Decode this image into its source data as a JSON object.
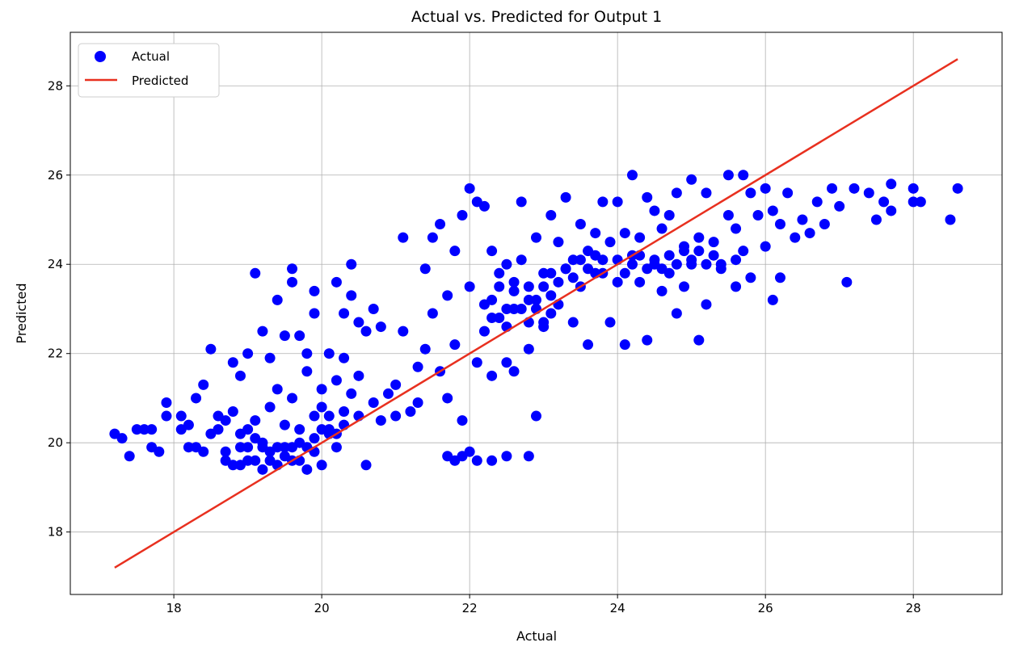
{
  "chart_data": {
    "type": "scatter",
    "title": "Actual vs. Predicted for Output 1",
    "xlabel": "Actual",
    "ylabel": "Predicted",
    "xlim": [
      16.6,
      29.2
    ],
    "ylim": [
      16.6,
      29.2
    ],
    "xticks": [
      18,
      20,
      22,
      24,
      26,
      28
    ],
    "yticks": [
      18,
      20,
      22,
      24,
      26,
      28
    ],
    "grid": true,
    "legend_position": "top-left",
    "series": [
      {
        "name": "Actual",
        "kind": "scatter",
        "color": "#0000ff",
        "points": [
          [
            17.2,
            20.2
          ],
          [
            17.3,
            20.1
          ],
          [
            17.4,
            19.7
          ],
          [
            17.5,
            20.3
          ],
          [
            17.6,
            20.3
          ],
          [
            17.7,
            20.3
          ],
          [
            17.7,
            19.9
          ],
          [
            17.8,
            19.8
          ],
          [
            17.9,
            20.9
          ],
          [
            17.9,
            20.6
          ],
          [
            18.1,
            20.6
          ],
          [
            18.1,
            20.3
          ],
          [
            18.2,
            20.4
          ],
          [
            18.2,
            19.9
          ],
          [
            18.3,
            21.0
          ],
          [
            18.3,
            19.9
          ],
          [
            18.4,
            21.3
          ],
          [
            18.4,
            19.8
          ],
          [
            18.5,
            22.1
          ],
          [
            18.5,
            20.2
          ],
          [
            18.6,
            20.6
          ],
          [
            18.6,
            20.3
          ],
          [
            18.7,
            20.5
          ],
          [
            18.7,
            19.6
          ],
          [
            18.8,
            20.7
          ],
          [
            18.8,
            21.8
          ],
          [
            18.9,
            21.5
          ],
          [
            18.9,
            19.5
          ],
          [
            19.0,
            20.3
          ],
          [
            19.0,
            22.0
          ],
          [
            19.1,
            23.8
          ],
          [
            19.1,
            20.5
          ],
          [
            19.2,
            22.5
          ],
          [
            19.2,
            20.0
          ],
          [
            19.3,
            20.8
          ],
          [
            19.3,
            21.9
          ],
          [
            19.4,
            23.2
          ],
          [
            19.4,
            21.2
          ],
          [
            19.5,
            22.4
          ],
          [
            19.5,
            20.4
          ],
          [
            19.6,
            23.9
          ],
          [
            19.6,
            23.6
          ],
          [
            19.6,
            21.0
          ],
          [
            19.7,
            22.4
          ],
          [
            19.7,
            20.3
          ],
          [
            19.8,
            22.0
          ],
          [
            19.8,
            21.6
          ],
          [
            19.9,
            23.4
          ],
          [
            19.9,
            22.9
          ],
          [
            19.9,
            20.6
          ],
          [
            20.0,
            21.2
          ],
          [
            20.0,
            20.8
          ],
          [
            20.1,
            22.0
          ],
          [
            20.1,
            20.3
          ],
          [
            20.2,
            23.6
          ],
          [
            20.2,
            21.4
          ],
          [
            20.3,
            22.9
          ],
          [
            20.3,
            21.9
          ],
          [
            20.4,
            23.3
          ],
          [
            20.4,
            24.0
          ],
          [
            20.4,
            21.1
          ],
          [
            20.5,
            22.7
          ],
          [
            20.5,
            21.5
          ],
          [
            20.5,
            20.6
          ],
          [
            20.6,
            22.5
          ],
          [
            20.6,
            19.5
          ],
          [
            20.7,
            23.0
          ],
          [
            20.7,
            20.9
          ],
          [
            20.8,
            22.6
          ],
          [
            20.8,
            20.5
          ],
          [
            20.9,
            21.1
          ],
          [
            21.0,
            21.3
          ],
          [
            21.0,
            20.6
          ],
          [
            21.1,
            24.6
          ],
          [
            21.1,
            22.5
          ],
          [
            21.2,
            20.7
          ],
          [
            21.3,
            21.7
          ],
          [
            21.3,
            20.9
          ],
          [
            21.4,
            23.9
          ],
          [
            21.4,
            22.1
          ],
          [
            21.5,
            24.6
          ],
          [
            21.5,
            22.9
          ],
          [
            21.6,
            24.9
          ],
          [
            21.6,
            21.6
          ],
          [
            21.7,
            23.3
          ],
          [
            21.7,
            21.0
          ],
          [
            21.8,
            24.3
          ],
          [
            21.8,
            22.2
          ],
          [
            21.9,
            25.1
          ],
          [
            21.9,
            20.5
          ],
          [
            22.0,
            25.7
          ],
          [
            22.0,
            23.5
          ],
          [
            22.1,
            25.4
          ],
          [
            22.1,
            21.8
          ],
          [
            22.2,
            25.3
          ],
          [
            22.2,
            23.1
          ],
          [
            22.3,
            24.3
          ],
          [
            22.3,
            21.5
          ],
          [
            22.4,
            23.8
          ],
          [
            22.4,
            22.8
          ],
          [
            22.5,
            24.0
          ],
          [
            22.5,
            21.8
          ],
          [
            22.6,
            23.6
          ],
          [
            22.6,
            21.6
          ],
          [
            22.7,
            25.4
          ],
          [
            22.7,
            24.1
          ],
          [
            22.8,
            23.2
          ],
          [
            22.8,
            22.1
          ],
          [
            22.9,
            24.6
          ],
          [
            22.9,
            20.6
          ],
          [
            23.0,
            23.8
          ],
          [
            23.0,
            22.7
          ],
          [
            23.1,
            25.1
          ],
          [
            23.1,
            23.3
          ],
          [
            23.2,
            24.5
          ],
          [
            23.2,
            23.1
          ],
          [
            23.3,
            25.5
          ],
          [
            23.3,
            23.9
          ],
          [
            23.4,
            24.1
          ],
          [
            23.4,
            22.7
          ],
          [
            23.5,
            24.9
          ],
          [
            23.5,
            23.5
          ],
          [
            23.6,
            24.3
          ],
          [
            23.6,
            22.2
          ],
          [
            23.7,
            24.7
          ],
          [
            23.7,
            23.8
          ],
          [
            23.8,
            25.4
          ],
          [
            23.8,
            24.1
          ],
          [
            23.9,
            24.5
          ],
          [
            23.9,
            22.7
          ],
          [
            24.0,
            25.4
          ],
          [
            24.0,
            23.6
          ],
          [
            24.1,
            24.7
          ],
          [
            24.1,
            22.2
          ],
          [
            24.2,
            26.0
          ],
          [
            24.2,
            24.2
          ],
          [
            24.3,
            24.6
          ],
          [
            24.3,
            23.6
          ],
          [
            24.4,
            25.5
          ],
          [
            24.4,
            22.3
          ],
          [
            24.5,
            25.2
          ],
          [
            24.5,
            24.0
          ],
          [
            24.6,
            24.8
          ],
          [
            24.6,
            23.4
          ],
          [
            24.7,
            25.1
          ],
          [
            24.7,
            23.8
          ],
          [
            24.8,
            25.6
          ],
          [
            24.8,
            22.9
          ],
          [
            24.9,
            24.4
          ],
          [
            24.9,
            23.5
          ],
          [
            25.0,
            25.9
          ],
          [
            25.0,
            24.0
          ],
          [
            25.1,
            24.6
          ],
          [
            25.1,
            22.3
          ],
          [
            25.2,
            25.6
          ],
          [
            25.2,
            23.1
          ],
          [
            25.3,
            24.5
          ],
          [
            25.4,
            24.0
          ],
          [
            25.5,
            26.0
          ],
          [
            25.5,
            25.1
          ],
          [
            25.6,
            24.8
          ],
          [
            25.6,
            23.5
          ],
          [
            25.7,
            26.0
          ],
          [
            25.7,
            24.3
          ],
          [
            25.8,
            25.6
          ],
          [
            25.8,
            23.7
          ],
          [
            25.9,
            25.1
          ],
          [
            26.0,
            25.7
          ],
          [
            26.0,
            24.4
          ],
          [
            26.1,
            25.2
          ],
          [
            26.1,
            23.2
          ],
          [
            26.2,
            24.9
          ],
          [
            26.2,
            23.7
          ],
          [
            26.3,
            25.6
          ],
          [
            26.4,
            24.6
          ],
          [
            26.5,
            25.0
          ],
          [
            26.6,
            24.7
          ],
          [
            26.7,
            25.4
          ],
          [
            26.8,
            24.9
          ],
          [
            26.9,
            25.7
          ],
          [
            27.0,
            25.3
          ],
          [
            27.1,
            23.6
          ],
          [
            27.2,
            25.7
          ],
          [
            27.4,
            25.6
          ],
          [
            27.5,
            25.0
          ],
          [
            27.6,
            25.4
          ],
          [
            27.7,
            25.2
          ],
          [
            27.7,
            25.8
          ],
          [
            28.0,
            25.7
          ],
          [
            28.0,
            25.4
          ],
          [
            28.1,
            25.4
          ],
          [
            28.5,
            25.0
          ],
          [
            28.6,
            25.7
          ],
          [
            18.8,
            19.5
          ],
          [
            18.9,
            19.9
          ],
          [
            19.0,
            19.6
          ],
          [
            19.1,
            20.1
          ],
          [
            19.2,
            19.4
          ],
          [
            19.3,
            19.8
          ],
          [
            19.4,
            19.5
          ],
          [
            19.5,
            19.9
          ],
          [
            19.6,
            19.6
          ],
          [
            19.7,
            20.0
          ],
          [
            19.8,
            19.4
          ],
          [
            19.9,
            19.8
          ],
          [
            20.0,
            19.5
          ],
          [
            20.1,
            20.2
          ],
          [
            20.2,
            19.9
          ],
          [
            20.3,
            20.4
          ],
          [
            18.7,
            19.8
          ],
          [
            18.9,
            20.2
          ],
          [
            19.0,
            19.9
          ],
          [
            19.1,
            19.6
          ],
          [
            19.2,
            19.9
          ],
          [
            19.3,
            19.6
          ],
          [
            19.4,
            19.9
          ],
          [
            19.5,
            19.7
          ],
          [
            19.6,
            19.9
          ],
          [
            19.7,
            19.6
          ],
          [
            19.8,
            19.9
          ],
          [
            19.9,
            20.1
          ],
          [
            20.0,
            20.3
          ],
          [
            20.1,
            20.6
          ],
          [
            20.2,
            20.2
          ],
          [
            20.3,
            20.7
          ],
          [
            22.3,
            23.2
          ],
          [
            22.4,
            23.5
          ],
          [
            22.5,
            23.0
          ],
          [
            22.6,
            23.4
          ],
          [
            22.7,
            23.0
          ],
          [
            22.8,
            23.5
          ],
          [
            22.9,
            23.2
          ],
          [
            23.0,
            23.5
          ],
          [
            23.1,
            23.8
          ],
          [
            23.2,
            23.6
          ],
          [
            23.3,
            23.9
          ],
          [
            23.4,
            23.7
          ],
          [
            23.5,
            24.1
          ],
          [
            23.6,
            23.9
          ],
          [
            23.7,
            24.2
          ],
          [
            23.8,
            23.8
          ],
          [
            24.0,
            24.1
          ],
          [
            24.1,
            23.8
          ],
          [
            24.2,
            24.0
          ],
          [
            24.3,
            24.2
          ],
          [
            24.4,
            23.9
          ],
          [
            24.5,
            24.1
          ],
          [
            24.6,
            23.9
          ],
          [
            24.7,
            24.2
          ],
          [
            24.8,
            24.0
          ],
          [
            24.9,
            24.3
          ],
          [
            25.0,
            24.1
          ],
          [
            25.1,
            24.3
          ],
          [
            25.2,
            24.0
          ],
          [
            25.3,
            24.2
          ],
          [
            25.4,
            23.9
          ],
          [
            25.6,
            24.1
          ],
          [
            22.2,
            22.5
          ],
          [
            22.3,
            22.8
          ],
          [
            22.5,
            22.6
          ],
          [
            22.6,
            23.0
          ],
          [
            22.8,
            22.7
          ],
          [
            22.9,
            23.0
          ],
          [
            23.0,
            22.6
          ],
          [
            23.1,
            22.9
          ],
          [
            21.9,
            19.7
          ],
          [
            21.8,
            19.6
          ],
          [
            22.0,
            19.8
          ],
          [
            22.3,
            19.6
          ],
          [
            22.5,
            19.7
          ],
          [
            21.7,
            19.7
          ],
          [
            22.1,
            19.6
          ],
          [
            22.8,
            19.7
          ]
        ]
      },
      {
        "name": "Predicted",
        "kind": "line",
        "color": "#e8301f",
        "points": [
          [
            17.2,
            17.2
          ],
          [
            28.6,
            28.6
          ]
        ]
      }
    ]
  }
}
